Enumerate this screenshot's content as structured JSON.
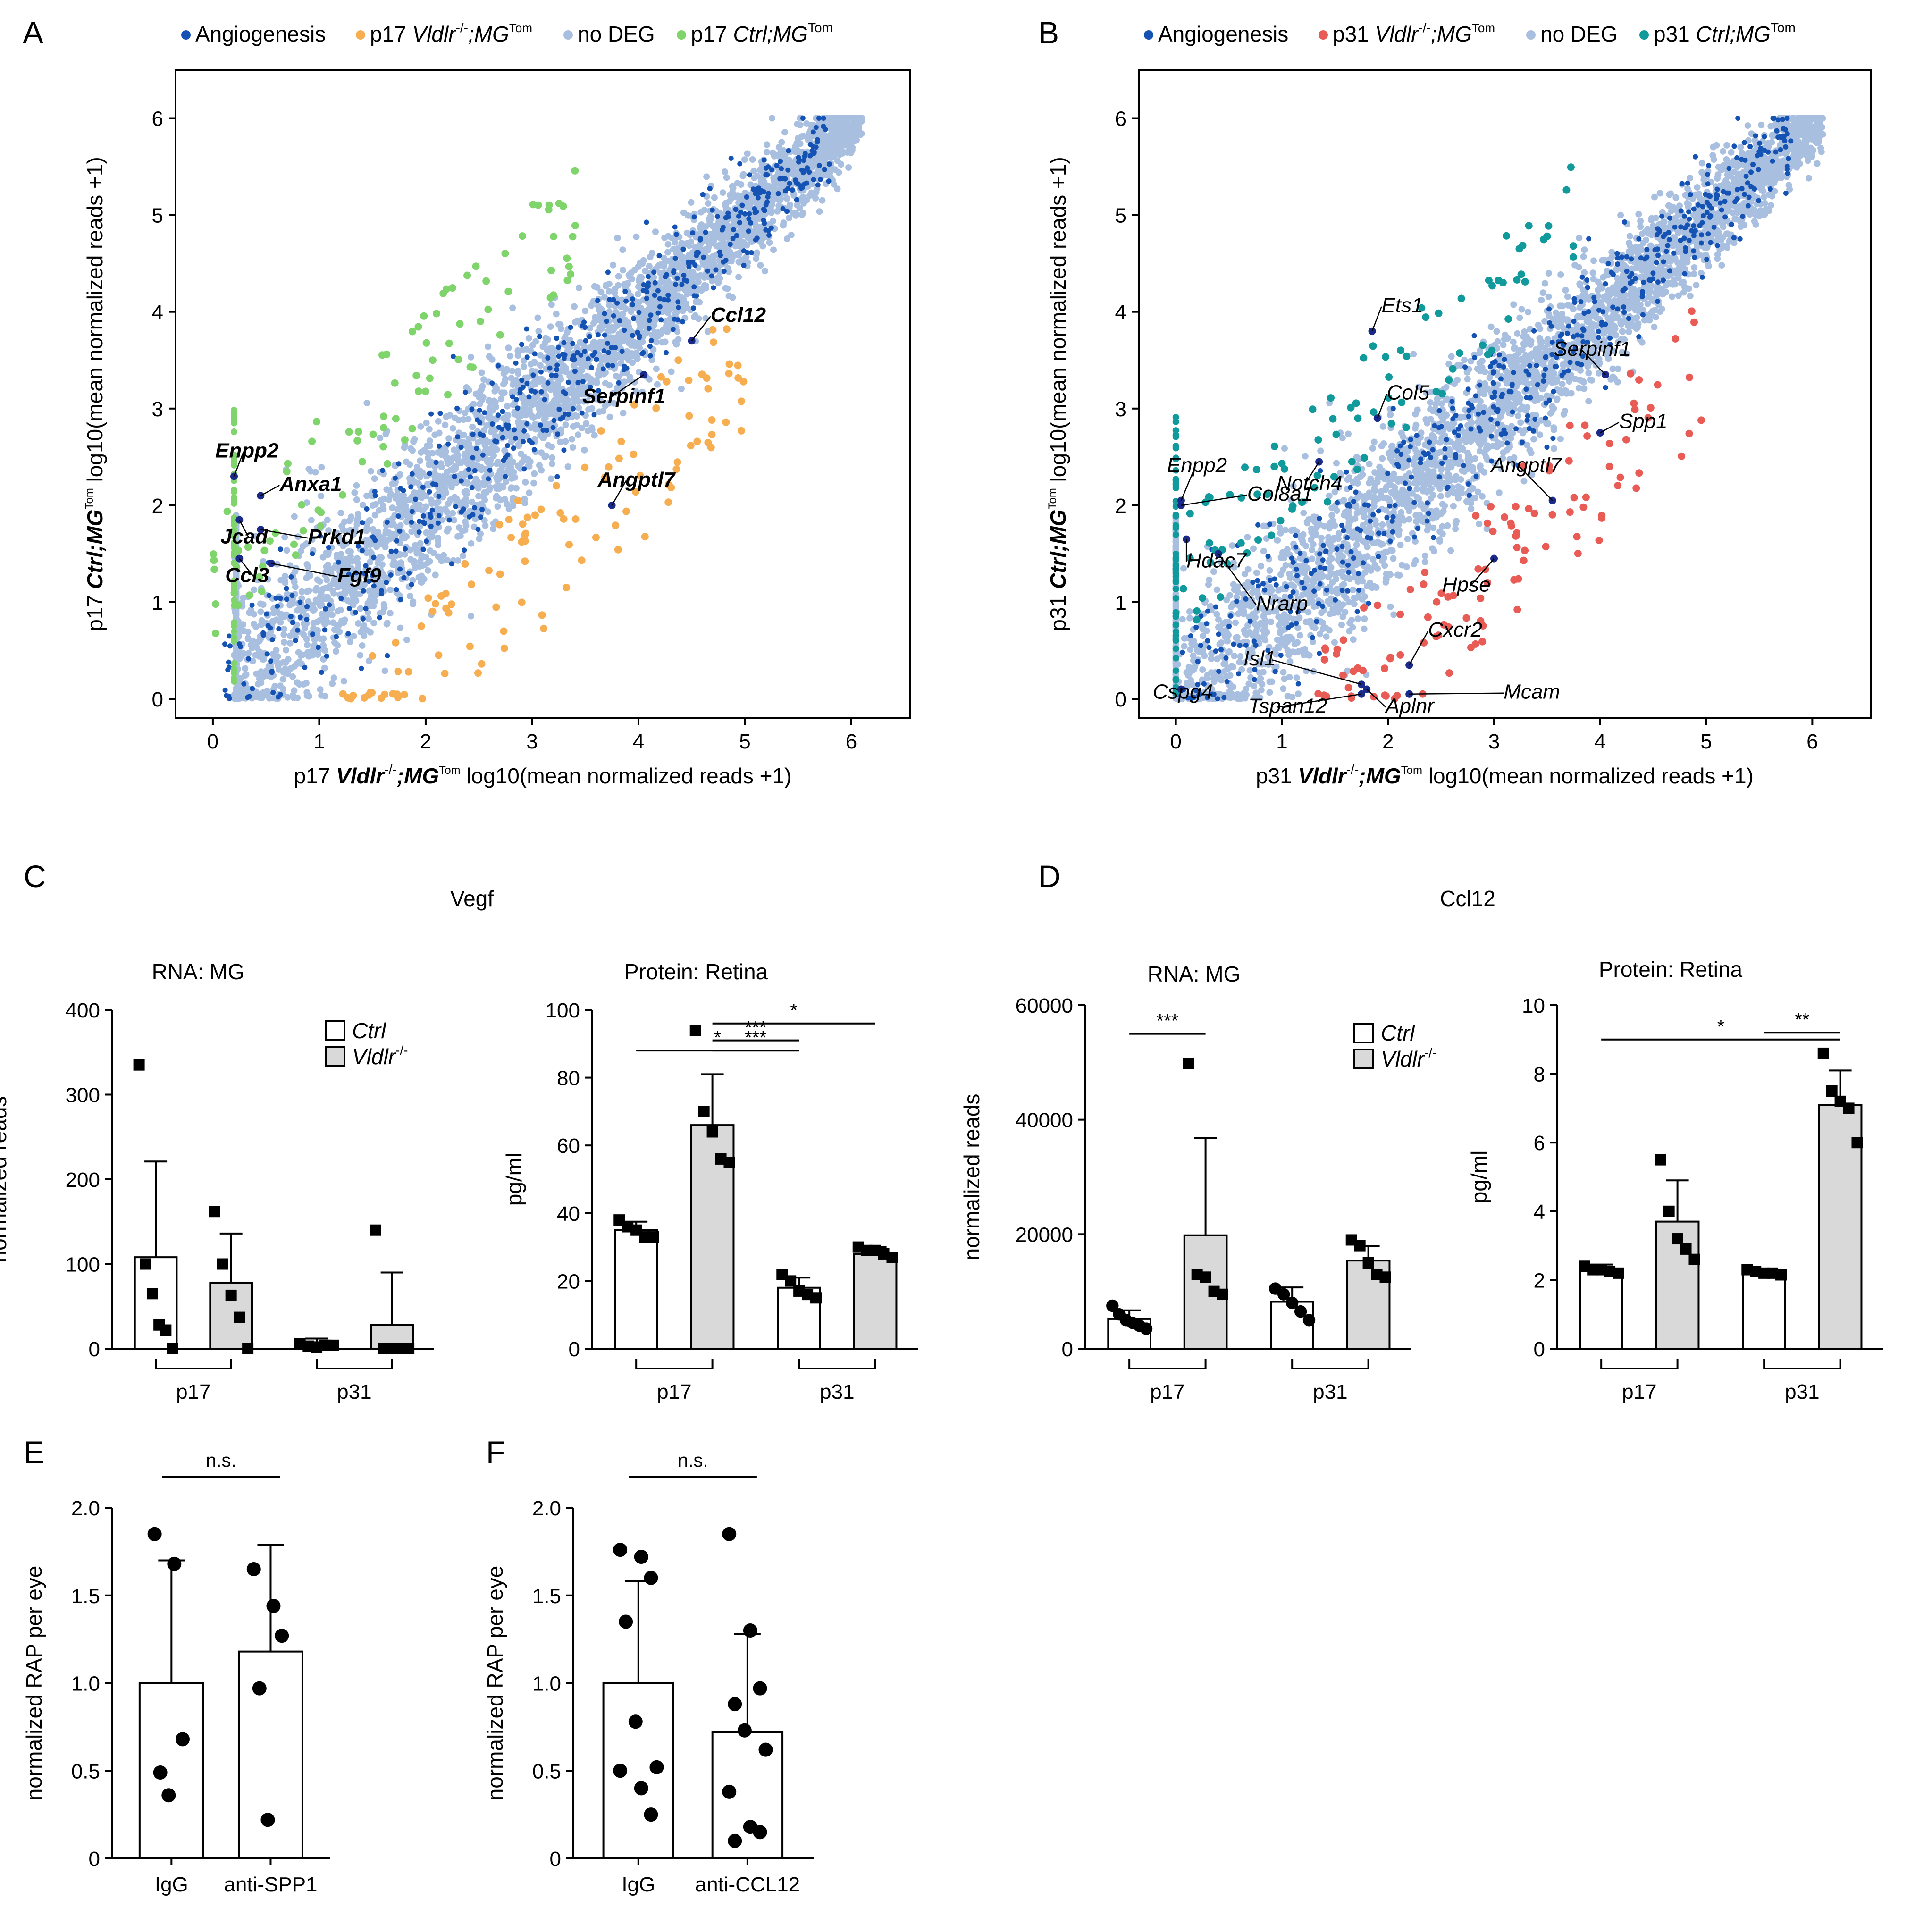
{
  "colors": {
    "angiogenesis": "#1452b4",
    "noDEG": "#a9bfdf",
    "p17_vldlr": "#f7ae51",
    "p17_ctrl": "#7fd46c",
    "p31_vldlr": "#e95c56",
    "p31_ctrl": "#119a9c",
    "ctrl_bar": "#ffffff",
    "vldlr_bar": "#d9d9d9"
  },
  "chart_data": [
    {
      "id": "A",
      "type": "scatter",
      "panel_label": "A",
      "legend": [
        {
          "key": "angiogenesis",
          "label": "Angiogenesis"
        },
        {
          "key": "p17_vldlr",
          "label": "p17 Vldlr",
          "sup": "-/-",
          "suffix": ";MG",
          "sup2": "Tom"
        },
        {
          "key": "noDEG",
          "label": "no DEG"
        },
        {
          "key": "p17_ctrl",
          "label": "p17 Ctrl;MG",
          "sup": "Tom"
        }
      ],
      "xlabel": {
        "prefix": "p17 ",
        "gene": "Vldlr",
        "sup": "-/-",
        "mid": ";MG",
        "sup2": "Tom",
        "rest": " log10(mean normalized reads +1)"
      },
      "ylabel": {
        "prefix": "p17 ",
        "gene": "Ctrl;MG",
        "sup": "Tom",
        "rest": " log10(mean normalized reads +1)"
      },
      "xlim": [
        -0.35,
        6.55
      ],
      "ylim": [
        -0.2,
        6.5
      ],
      "xticks": [
        "0",
        "1",
        "2",
        "3",
        "4",
        "5",
        "6"
      ],
      "yticks": [
        "0",
        "1",
        "2",
        "3",
        "4",
        "5",
        "6"
      ],
      "highlight_up_key": "p17_vldlr",
      "highlight_down_key": "p17_ctrl",
      "genes": [
        {
          "name": "Ccl12",
          "x": 4.5,
          "y": 3.7
        },
        {
          "name": "Serpinf1",
          "x": 4.05,
          "y": 3.35
        },
        {
          "name": "Angptl7",
          "x": 3.75,
          "y": 2.0
        },
        {
          "name": "Enpp2",
          "x": 0.2,
          "y": 2.3
        },
        {
          "name": "Anxa1",
          "x": 0.45,
          "y": 2.1
        },
        {
          "name": "Jcad",
          "x": 0.25,
          "y": 1.85
        },
        {
          "name": "Prkd1",
          "x": 0.45,
          "y": 1.75
        },
        {
          "name": "Fgf9",
          "x": 0.55,
          "y": 1.4
        },
        {
          "name": "Ccl3",
          "x": 0.25,
          "y": 1.45
        }
      ]
    },
    {
      "id": "B",
      "type": "scatter",
      "panel_label": "B",
      "legend": [
        {
          "key": "angiogenesis",
          "label": "Angiogenesis"
        },
        {
          "key": "p31_vldlr",
          "label": "p31 Vldlr",
          "sup": "-/-",
          "suffix": ";MG",
          "sup2": "Tom"
        },
        {
          "key": "noDEG",
          "label": "no DEG"
        },
        {
          "key": "p31_ctrl",
          "label": "p31 Ctrl;MG",
          "sup": "Tom"
        }
      ],
      "xlabel": {
        "prefix": "p31 ",
        "gene": "Vldlr",
        "sup": "-/-",
        "mid": ";MG",
        "sup2": "Tom",
        "rest": " log10(mean normalized reads +1)"
      },
      "ylabel": {
        "prefix": "p31 ",
        "gene": "Ctrl;MG",
        "sup": "Tom",
        "rest": " log10(mean normalized reads +1)"
      },
      "xlim": [
        -0.35,
        6.55
      ],
      "ylim": [
        -0.2,
        6.5
      ],
      "xticks": [
        "0",
        "1",
        "2",
        "3",
        "4",
        "5",
        "6"
      ],
      "yticks": [
        "0",
        "1",
        "2",
        "3",
        "4",
        "5",
        "6"
      ],
      "highlight_up_key": "p31_vldlr",
      "highlight_down_key": "p31_ctrl",
      "genes": [
        {
          "name": "Ets1",
          "x": 1.85,
          "y": 3.8
        },
        {
          "name": "Serpinf1",
          "x": 4.05,
          "y": 3.35
        },
        {
          "name": "Col5",
          "x": 1.9,
          "y": 2.9
        },
        {
          "name": "Spp1",
          "x": 4.0,
          "y": 2.75
        },
        {
          "name": "Notch4",
          "x": 1.35,
          "y": 2.45
        },
        {
          "name": "Angptl7",
          "x": 3.55,
          "y": 2.05
        },
        {
          "name": "Enpp2",
          "x": 0.05,
          "y": 2.05
        },
        {
          "name": "Col8a1",
          "x": 0.05,
          "y": 2.0
        },
        {
          "name": "Hdac7",
          "x": 0.1,
          "y": 1.65
        },
        {
          "name": "Nrarp",
          "x": 0.4,
          "y": 1.5
        },
        {
          "name": "Hpse",
          "x": 3.0,
          "y": 1.45
        },
        {
          "name": "Cxcr2",
          "x": 2.2,
          "y": 0.35
        },
        {
          "name": "Isl1",
          "x": 1.75,
          "y": 0.15
        },
        {
          "name": "Mcam",
          "x": 2.2,
          "y": 0.05
        },
        {
          "name": "Cspg4",
          "x": 0.05,
          "y": 0.1
        },
        {
          "name": "Tspan12",
          "x": 1.75,
          "y": 0.05
        },
        {
          "name": "Aplnr",
          "x": 1.8,
          "y": 0.1
        }
      ]
    },
    {
      "id": "C1",
      "type": "bar",
      "panel_label": "C",
      "group_title": "Vegf",
      "title": "RNA: MG",
      "ylabel": "normalized reads",
      "ylim": [
        0,
        400
      ],
      "yticks": [
        0,
        100,
        200,
        300,
        400
      ],
      "groups": [
        "p17",
        "p31"
      ],
      "legend": [
        {
          "key": "ctrl",
          "label": "Ctrl"
        },
        {
          "key": "vldlr",
          "label": "Vldlr",
          "sup": "-/-"
        }
      ],
      "series": [
        {
          "name": "Ctrl",
          "key": "ctrl",
          "marker": "square",
          "values": [
            108,
            5
          ],
          "err": [
            113,
            7
          ],
          "points": [
            [
              335,
              100,
              65,
              28,
              22,
              0
            ],
            [
              6,
              3,
              2,
              4,
              4
            ]
          ]
        },
        {
          "name": "Vldlr-/-",
          "key": "vldlr",
          "marker": "square",
          "values": [
            78,
            28
          ],
          "err": [
            58,
            62
          ],
          "points": [
            [
              162,
              100,
              63,
              37,
              0
            ],
            [
              140,
              0,
              0,
              0,
              0
            ]
          ]
        }
      ],
      "sig": []
    },
    {
      "id": "C2",
      "type": "bar",
      "title": "Protein: Retina",
      "ylabel": "pg/ml",
      "ylim": [
        0,
        100
      ],
      "yticks": [
        0,
        20,
        40,
        60,
        80,
        100
      ],
      "groups": [
        "p17",
        "p31"
      ],
      "series": [
        {
          "name": "Ctrl",
          "key": "ctrl",
          "marker": "square",
          "values": [
            35,
            18
          ],
          "err": [
            2.5,
            3
          ],
          "points": [
            [
              38,
              36,
              35,
              33,
              33
            ],
            [
              22,
              20,
              17,
              16,
              15
            ]
          ]
        },
        {
          "name": "Vldlr-/-",
          "key": "vldlr",
          "marker": "square",
          "values": [
            66,
            28
          ],
          "err": [
            15,
            2
          ],
          "points": [
            [
              94,
              70,
              64,
              56,
              55
            ],
            [
              30,
              29,
              29,
              28,
              27
            ]
          ]
        }
      ],
      "sig": [
        {
          "label": "*",
          "from": [
            0,
            0
          ],
          "to": [
            1,
            0
          ],
          "y": 88
        },
        {
          "label": "***",
          "from": [
            0,
            1
          ],
          "to": [
            1,
            0
          ],
          "y": 91
        },
        {
          "label": "***",
          "from": [
            0,
            1
          ],
          "to": [
            1,
            0
          ],
          "y": 88
        },
        {
          "label": "*",
          "from": [
            0,
            1
          ],
          "to": [
            1,
            1
          ],
          "y": 96
        }
      ]
    },
    {
      "id": "D1",
      "type": "bar",
      "panel_label": "D",
      "group_title": "Ccl12",
      "title": "RNA: MG",
      "ylabel": "normalized reads",
      "ylim": [
        0,
        60000
      ],
      "yticks": [
        0,
        20000,
        40000,
        60000
      ],
      "groups": [
        "p17",
        "p31"
      ],
      "legend": [
        {
          "key": "ctrl",
          "label": "Ctrl"
        },
        {
          "key": "vldlr",
          "label": "Vldlr",
          "sup": "-/-"
        }
      ],
      "series": [
        {
          "name": "Ctrl",
          "key": "ctrl",
          "marker": "diamond",
          "values": [
            5200,
            8200
          ],
          "err": [
            1500,
            2500
          ],
          "points": [
            [
              7500,
              6000,
              5000,
              4500,
              4000,
              3500
            ],
            [
              10500,
              9500,
              8000,
              6500,
              5000
            ]
          ]
        },
        {
          "name": "Vldlr-/-",
          "key": "vldlr",
          "marker": "square",
          "values": [
            19800,
            15400
          ],
          "err": [
            17000,
            2500
          ],
          "points": [
            [
              49800,
              13000,
              12500,
              10000,
              9500
            ],
            [
              19000,
              18000,
              15000,
              13000,
              12500
            ]
          ]
        }
      ],
      "sig": [
        {
          "label": "***",
          "from": [
            0,
            0
          ],
          "to": [
            0,
            1
          ],
          "y": 55000
        }
      ]
    },
    {
      "id": "D2",
      "type": "bar",
      "title": "Protein: Retina",
      "ylabel": "pg/ml",
      "ylim": [
        0,
        10
      ],
      "yticks": [
        0,
        2,
        4,
        6,
        8,
        10
      ],
      "groups": [
        "p17",
        "p31"
      ],
      "series": [
        {
          "name": "Ctrl",
          "key": "ctrl",
          "marker": "square",
          "values": [
            2.3,
            2.2
          ],
          "err": [
            0.15,
            0.1
          ],
          "points": [
            [
              2.4,
              2.3,
              2.3,
              2.25,
              2.2
            ],
            [
              2.3,
              2.25,
              2.2,
              2.2,
              2.15
            ]
          ]
        },
        {
          "name": "Vldlr-/-",
          "key": "vldlr",
          "marker": "square",
          "values": [
            3.7,
            7.1
          ],
          "err": [
            1.2,
            1.0
          ],
          "points": [
            [
              5.5,
              4.0,
              3.2,
              2.9,
              2.6
            ],
            [
              8.6,
              7.5,
              7.2,
              7.0,
              6.0
            ]
          ]
        }
      ],
      "sig": [
        {
          "label": "*",
          "from": [
            0,
            0
          ],
          "to": [
            1,
            1
          ],
          "y": 9.0
        },
        {
          "label": "**",
          "from": [
            1,
            0
          ],
          "to": [
            1,
            1
          ],
          "y": 9.2
        }
      ]
    },
    {
      "id": "E",
      "type": "bar",
      "panel_label": "E",
      "ylabel": "normalized RAP per eye",
      "ylim": [
        0,
        2.0
      ],
      "yticks": [
        "0",
        "0.5",
        "1.0",
        "1.5",
        "2.0"
      ],
      "categories": [
        "IgG",
        "anti-SPP1"
      ],
      "values": [
        1.0,
        1.18
      ],
      "err": [
        0.7,
        0.61
      ],
      "points": [
        [
          1.85,
          1.68,
          0.68,
          0.49,
          0.36
        ],
        [
          1.65,
          1.44,
          1.27,
          0.97,
          0.22
        ]
      ],
      "sig": [
        {
          "label": "n.s.",
          "y": 2.15
        }
      ]
    },
    {
      "id": "F",
      "type": "bar",
      "panel_label": "F",
      "ylabel": "normalized RAP per eye",
      "ylim": [
        0,
        2.0
      ],
      "yticks": [
        "0",
        "0.5",
        "1.0",
        "1.5",
        "2.0"
      ],
      "categories": [
        "IgG",
        "anti-CCL12"
      ],
      "values": [
        1.0,
        0.72
      ],
      "err": [
        0.58,
        0.56
      ],
      "points": [
        [
          1.76,
          1.72,
          1.6,
          1.35,
          0.78,
          0.52,
          0.5,
          0.4,
          0.25
        ],
        [
          1.85,
          1.3,
          0.97,
          0.88,
          0.73,
          0.62,
          0.38,
          0.18,
          0.15,
          0.1
        ]
      ],
      "sig": [
        {
          "label": "n.s.",
          "y": 2.15
        }
      ]
    }
  ]
}
